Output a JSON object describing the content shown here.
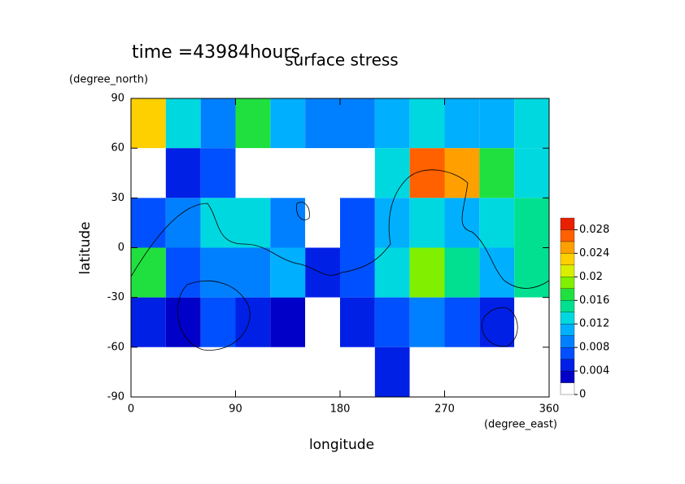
{
  "chart_data": {
    "type": "heatmap",
    "title": "surface stress",
    "annotation": "time =43984hours",
    "x_label": "longitude",
    "x_unit": "(degree_east)",
    "y_label": "latitude",
    "y_unit": "(degree_north)",
    "xlim": [
      0,
      360
    ],
    "xticks": [
      0,
      90,
      180,
      270,
      360
    ],
    "ylim": [
      -90,
      90
    ],
    "yticks": [
      -90,
      -60,
      -30,
      0,
      30,
      60,
      90
    ],
    "x": [
      15,
      45,
      75,
      105,
      135,
      165,
      195,
      225,
      255,
      285,
      315,
      345
    ],
    "y": [
      75,
      45,
      15,
      -15,
      -45,
      -75
    ],
    "z": [
      [
        0.022,
        0.012,
        0.008,
        0.016,
        0.01,
        0.008,
        0.008,
        0.01,
        0.012,
        0.01,
        0.01,
        0.012
      ],
      [
        0,
        0.004,
        0.006,
        0,
        0,
        0,
        0,
        0.012,
        0.026,
        0.024,
        0.016,
        0.012
      ],
      [
        0.006,
        0.008,
        0.012,
        0.012,
        0.008,
        0,
        0.006,
        0.01,
        0.012,
        0.01,
        0.012,
        0.014
      ],
      [
        0.016,
        0.006,
        0.008,
        0.008,
        0.01,
        0.004,
        0.006,
        0.012,
        0.018,
        0.014,
        0.01,
        0.014
      ],
      [
        0.004,
        0.002,
        0.006,
        0.004,
        0.002,
        0,
        0.004,
        0.006,
        0.008,
        0.006,
        0.004,
        0
      ],
      [
        0,
        0,
        0,
        0,
        0,
        0,
        0,
        0.004,
        0,
        0,
        0,
        0
      ]
    ],
    "levels": [
      0,
      0.002,
      0.004,
      0.006,
      0.008,
      0.01,
      0.012,
      0.014,
      0.016,
      0.018,
      0.02,
      0.022,
      0.024,
      0.026,
      0.028,
      0.03
    ],
    "colors": [
      "#ffffff",
      "#0000c8",
      "#0020e6",
      "#0050ff",
      "#0080ff",
      "#00b0ff",
      "#00d8e0",
      "#00e090",
      "#20e040",
      "#80f000",
      "#d8f000",
      "#ffd000",
      "#ffa000",
      "#ff6000",
      "#e82000"
    ],
    "colorbar_ticks": [
      0,
      0.004,
      0.008,
      0.012,
      0.016,
      0.02,
      0.024,
      0.028
    ]
  }
}
